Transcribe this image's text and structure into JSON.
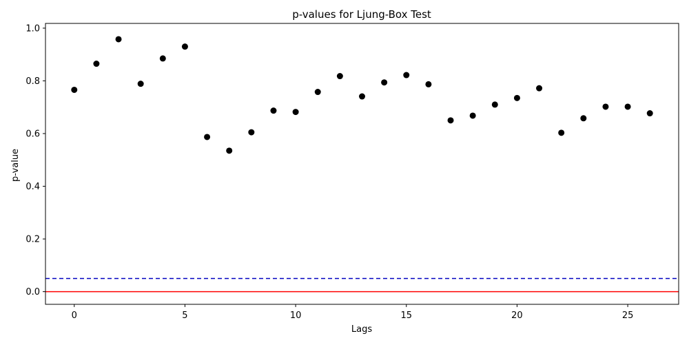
{
  "chart_data": {
    "type": "scatter",
    "title": "p-values for Ljung-Box Test",
    "xlabel": "Lags",
    "ylabel": "p-value",
    "xlim": [
      -1.3,
      27.3
    ],
    "ylim": [
      -0.048,
      1.018
    ],
    "xticks": [
      0,
      5,
      10,
      15,
      20,
      25
    ],
    "xtick_labels": [
      "0",
      "5",
      "10",
      "15",
      "20",
      "25"
    ],
    "yticks": [
      0.0,
      0.2,
      0.4,
      0.6,
      0.8,
      1.0
    ],
    "ytick_labels": [
      "0.0",
      "0.2",
      "0.4",
      "0.6",
      "0.8",
      "1.0"
    ],
    "grid": false,
    "x": [
      0,
      1,
      2,
      3,
      4,
      5,
      6,
      7,
      8,
      9,
      10,
      11,
      12,
      13,
      14,
      15,
      16,
      17,
      18,
      19,
      20,
      21,
      22,
      23,
      24,
      25,
      26
    ],
    "y": [
      0.766,
      0.865,
      0.958,
      0.789,
      0.885,
      0.93,
      0.587,
      0.535,
      0.605,
      0.687,
      0.682,
      0.758,
      0.818,
      0.741,
      0.794,
      0.822,
      0.787,
      0.65,
      0.668,
      0.71,
      0.735,
      0.772,
      0.603,
      0.658,
      0.702,
      0.702,
      0.677
    ],
    "point_color": "#000000",
    "reference_lines": [
      {
        "y": 0.05,
        "style": "dashed",
        "color": "#0000bf"
      },
      {
        "y": 0.0,
        "style": "solid",
        "color": "#ff0000"
      }
    ]
  }
}
